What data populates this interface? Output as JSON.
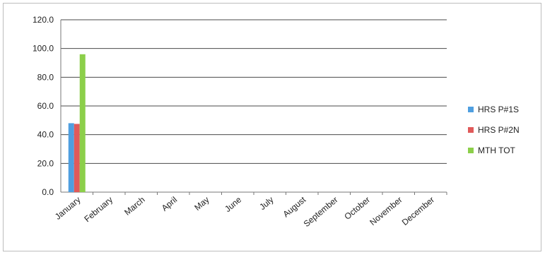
{
  "chart_data": {
    "type": "bar",
    "categories": [
      "January",
      "February",
      "March",
      "April",
      "May",
      "June",
      "July",
      "August",
      "September",
      "October",
      "November",
      "December"
    ],
    "series": [
      {
        "name": "HRS P#1S",
        "color": "#4f9fe0",
        "values": [
          48,
          0,
          0,
          0,
          0,
          0,
          0,
          0,
          0,
          0,
          0,
          0
        ]
      },
      {
        "name": "HRS P#2N",
        "color": "#e05a5a",
        "values": [
          47.5,
          0,
          0,
          0,
          0,
          0,
          0,
          0,
          0,
          0,
          0,
          0
        ]
      },
      {
        "name": "MTH TOT",
        "color": "#8ccf4a",
        "values": [
          96,
          0,
          0,
          0,
          0,
          0,
          0,
          0,
          0,
          0,
          0,
          0
        ]
      }
    ],
    "yticks": [
      "0.0",
      "20.0",
      "40.0",
      "60.0",
      "80.0",
      "100.0",
      "120.0"
    ],
    "ylim": [
      0,
      120
    ],
    "grid": true,
    "legend_position": "right"
  }
}
